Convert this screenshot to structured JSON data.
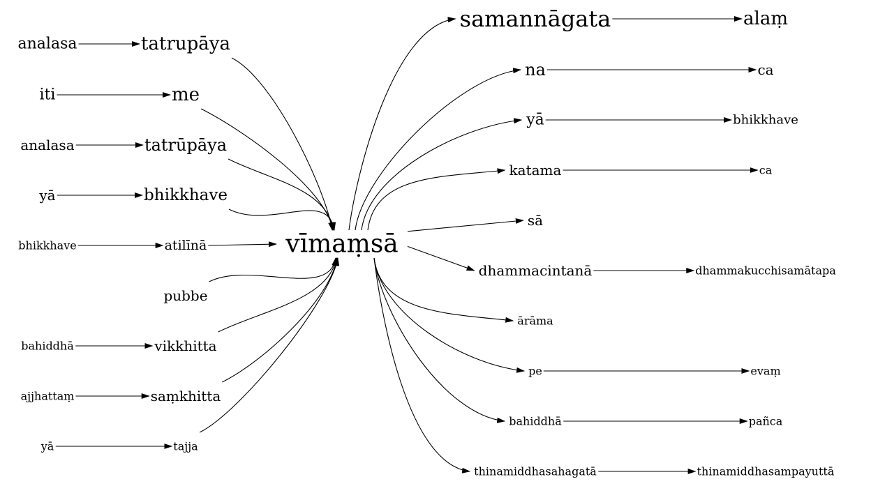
{
  "graph": {
    "center": "vīmaṃsā",
    "left_chains": [
      [
        "analasa",
        "tatrupāya"
      ],
      [
        "iti",
        "me"
      ],
      [
        "analasa",
        "tatrūpāya"
      ],
      [
        "yā",
        "bhikkhave"
      ],
      [
        "bhikkhave",
        "atilīnā"
      ],
      [
        "pubbe"
      ],
      [
        "bahiddhā",
        "vikkhitta"
      ],
      [
        "ajjhattaṃ",
        "saṃkhitta"
      ],
      [
        "yā",
        "tajja"
      ]
    ],
    "right_chains": [
      [
        "samannāgata",
        "alaṃ"
      ],
      [
        "na",
        "ca"
      ],
      [
        "yā",
        "bhikkhave"
      ],
      [
        "katama",
        "ca"
      ],
      [
        "sā"
      ],
      [
        "dhammacintanā",
        "dhammakucchisamātapa"
      ],
      [
        "ārāma"
      ],
      [
        "pe",
        "evaṃ"
      ],
      [
        "bahiddhā",
        "pañca"
      ],
      [
        "thinamiddhasahagatā",
        "thinamiddhasampayuttā"
      ]
    ]
  }
}
